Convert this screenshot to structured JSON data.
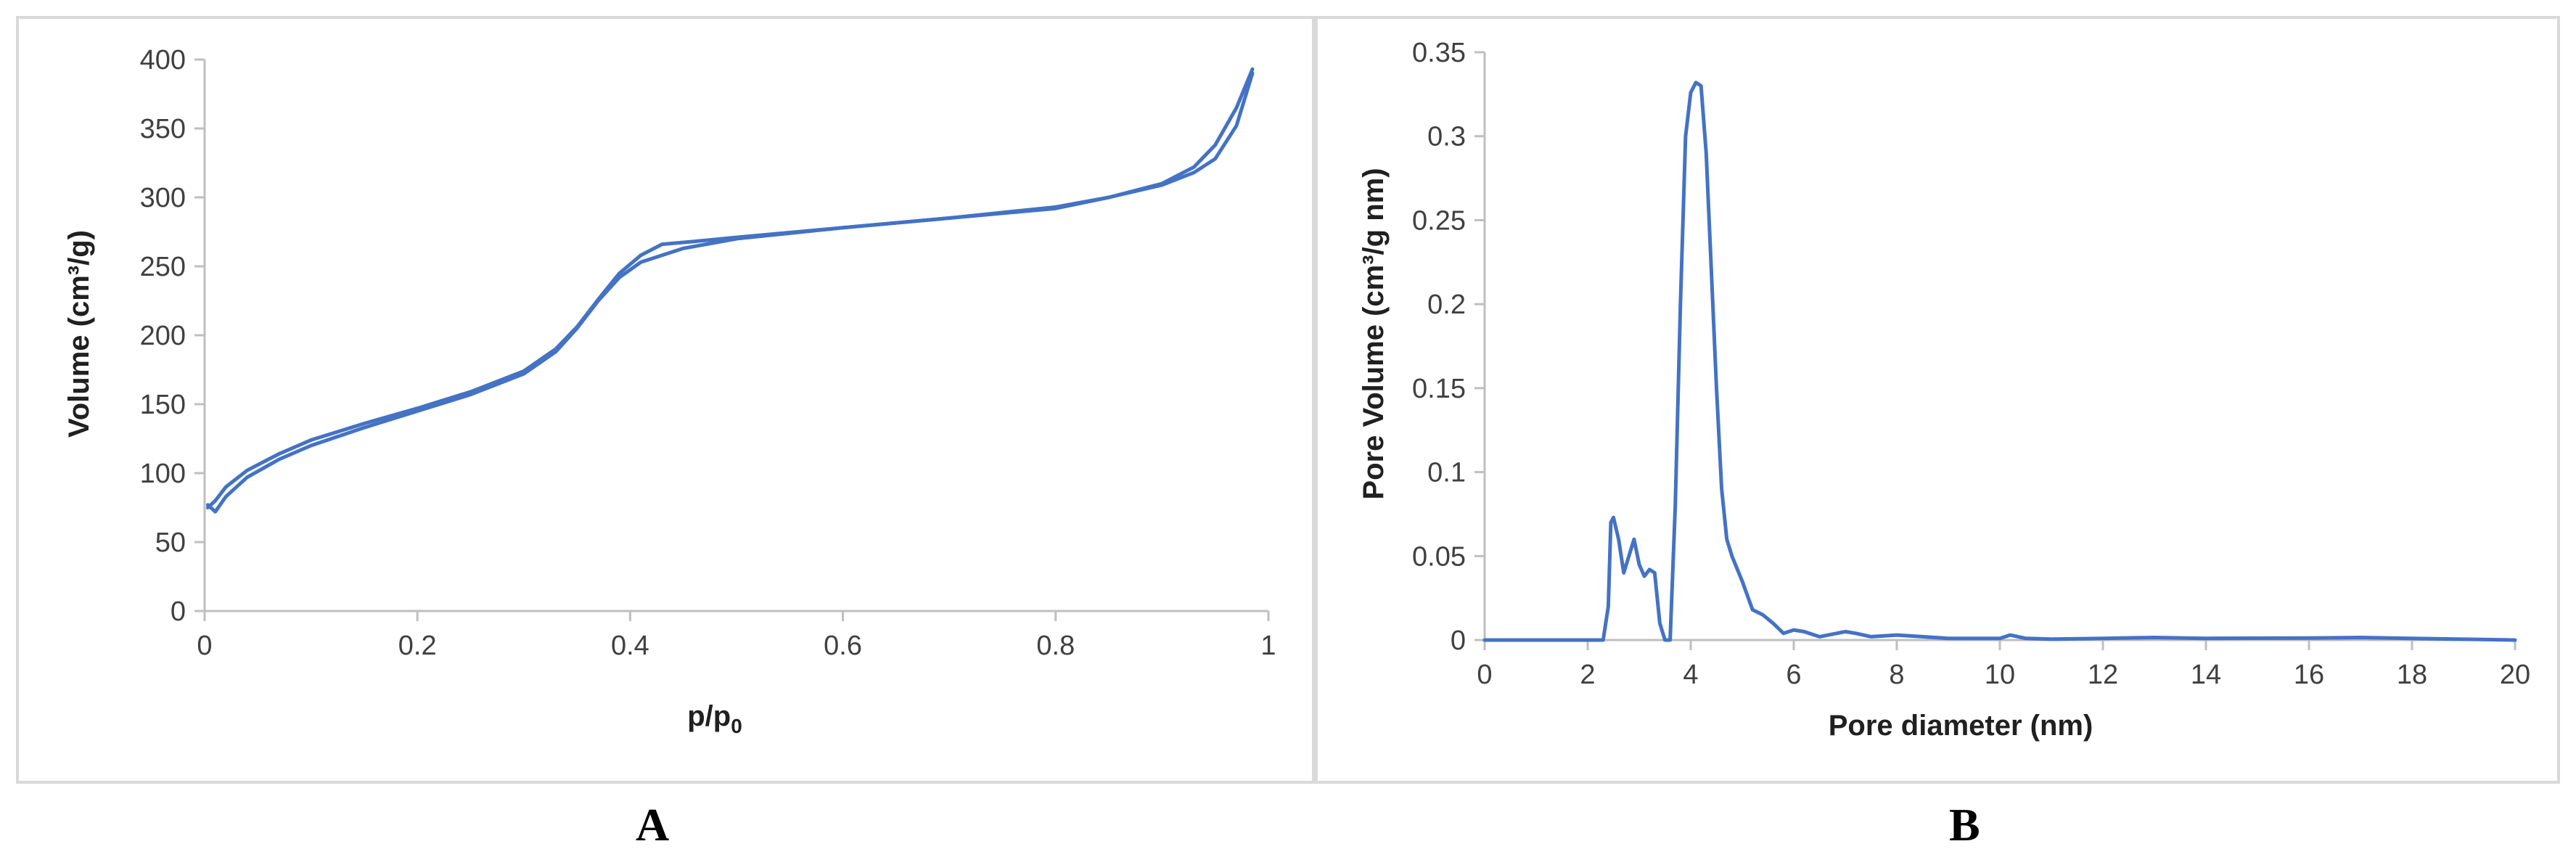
{
  "chart_data": [
    {
      "panel": "A",
      "type": "line",
      "xlabel": "p/p",
      "xlabel_sub": "0",
      "ylabel": "Volume (cm³/g)",
      "xlim": [
        0,
        1
      ],
      "ylim": [
        0,
        400
      ],
      "x_ticks": [
        "0",
        "0.2",
        "0.4",
        "0.6",
        "0.8",
        "1"
      ],
      "y_ticks": [
        "0",
        "50",
        "100",
        "150",
        "200",
        "250",
        "300",
        "350",
        "400"
      ],
      "x_tick_values": [
        0,
        0.2,
        0.4,
        0.6,
        0.8,
        1
      ],
      "y_tick_values": [
        0,
        50,
        100,
        150,
        200,
        250,
        300,
        350,
        400
      ],
      "grid": false,
      "color": "#4472C4",
      "series": [
        {
          "x": [
            0.003,
            0.01,
            0.02,
            0.04,
            0.07,
            0.1,
            0.15,
            0.2,
            0.25,
            0.3,
            0.33,
            0.35,
            0.37,
            0.39,
            0.41,
            0.43,
            0.45,
            0.5,
            0.6,
            0.7,
            0.8,
            0.85,
            0.9,
            0.93,
            0.95,
            0.97,
            0.985
          ],
          "y": [
            77,
            72,
            83,
            97,
            110,
            120,
            133,
            145,
            157,
            172,
            188,
            205,
            225,
            242,
            253,
            258,
            263,
            270,
            278,
            285,
            293,
            300,
            309,
            318,
            328,
            352,
            390
          ]
        },
        {
          "x": [
            0.985,
            0.97,
            0.95,
            0.93,
            0.9,
            0.85,
            0.8,
            0.7,
            0.6,
            0.5,
            0.46,
            0.43,
            0.41,
            0.39,
            0.37,
            0.35,
            0.33,
            0.3,
            0.25,
            0.2,
            0.15,
            0.1,
            0.07,
            0.04,
            0.02,
            0.01,
            0.003
          ],
          "y": [
            393,
            365,
            338,
            322,
            310,
            300,
            292,
            285,
            278,
            271,
            268,
            266,
            258,
            245,
            226,
            206,
            190,
            174,
            159,
            147,
            136,
            124,
            114,
            102,
            90,
            80,
            75
          ]
        }
      ]
    },
    {
      "panel": "B",
      "type": "line",
      "xlabel": "Pore diameter (nm)",
      "ylabel": "Pore Volume (cm³/g nm)",
      "xlim": [
        0,
        20
      ],
      "ylim": [
        0,
        0.35
      ],
      "x_ticks": [
        "0",
        "2",
        "4",
        "6",
        "8",
        "10",
        "12",
        "14",
        "16",
        "18",
        "20"
      ],
      "y_ticks": [
        "0",
        "0.05",
        "0.1",
        "0.15",
        "0.2",
        "0.25",
        "0.3",
        "0.35"
      ],
      "x_tick_values": [
        0,
        2,
        4,
        6,
        8,
        10,
        12,
        14,
        16,
        18,
        20
      ],
      "y_tick_values": [
        0,
        0.05,
        0.1,
        0.15,
        0.2,
        0.25,
        0.3,
        0.35
      ],
      "grid": false,
      "color": "#4472C4",
      "series": [
        {
          "x": [
            0,
            2.0,
            2.3,
            2.4,
            2.45,
            2.5,
            2.6,
            2.7,
            2.8,
            2.9,
            3.0,
            3.1,
            3.2,
            3.3,
            3.4,
            3.5,
            3.6,
            3.7,
            3.8,
            3.9,
            4.0,
            4.1,
            4.2,
            4.3,
            4.4,
            4.5,
            4.6,
            4.7,
            4.8,
            5.0,
            5.2,
            5.4,
            5.6,
            5.8,
            6.0,
            6.2,
            6.5,
            7.0,
            7.2,
            7.5,
            8.0,
            8.5,
            9.0,
            10.0,
            10.2,
            10.5,
            11.0,
            12.0,
            13.0,
            14.0,
            16.0,
            17.0,
            18.0,
            20.0
          ],
          "y": [
            0,
            0,
            0,
            0.02,
            0.07,
            0.073,
            0.06,
            0.04,
            0.05,
            0.06,
            0.045,
            0.038,
            0.042,
            0.04,
            0.01,
            0,
            0,
            0.08,
            0.2,
            0.3,
            0.326,
            0.332,
            0.33,
            0.29,
            0.22,
            0.15,
            0.09,
            0.06,
            0.05,
            0.035,
            0.018,
            0.015,
            0.01,
            0.004,
            0.006,
            0.005,
            0.002,
            0.005,
            0.004,
            0.002,
            0.003,
            0.002,
            0.001,
            0.001,
            0.003,
            0.001,
            0.0005,
            0.001,
            0.0015,
            0.001,
            0.0012,
            0.0015,
            0.001,
            0
          ]
        }
      ]
    }
  ],
  "labels": {
    "panel_a": "A",
    "panel_b": "B"
  }
}
